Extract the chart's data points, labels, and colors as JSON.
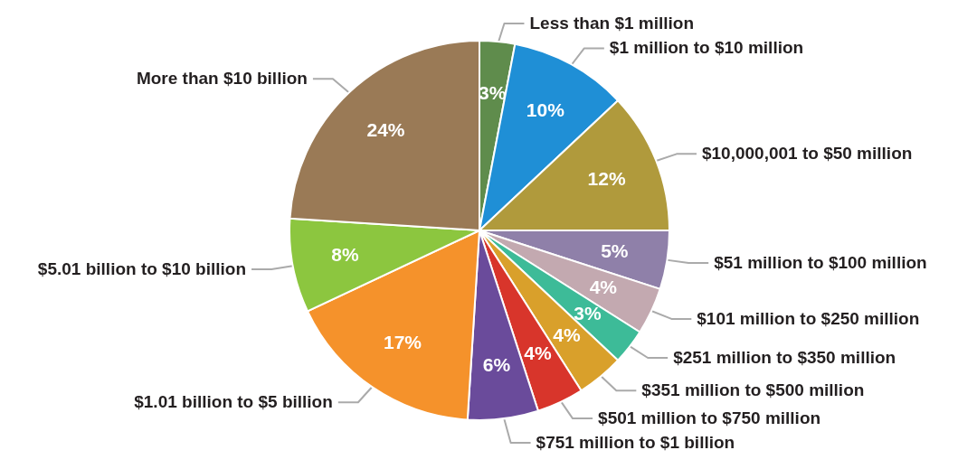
{
  "chart_data": {
    "type": "pie",
    "categories": [
      "Less than $1 million",
      "$1 million to $10 million",
      "$10,000,001 to $50 million",
      "$51 million to $100 million",
      "$101 million to $250 million",
      "$251 million to $350 million",
      "$351 million to $500 million",
      "$501 million to $750 million",
      "$751 million to $1 billion",
      "$1.01 billion to $5 billion",
      "$5.01 billion to $10 billion",
      "More than $10 billion"
    ],
    "values": [
      3,
      10,
      12,
      5,
      4,
      3,
      4,
      4,
      6,
      17,
      8,
      24
    ],
    "colors": [
      "#5f8c4c",
      "#1f8fd6",
      "#b09a3c",
      "#8f80a9",
      "#c3a9b0",
      "#3dbb98",
      "#d9a02b",
      "#d8352b",
      "#6a4b9b",
      "#f5922b",
      "#8cc63f",
      "#9a7a56"
    ],
    "value_labels": [
      "3%",
      "10%",
      "12%",
      "5%",
      "4%",
      "3%",
      "4%",
      "4%",
      "6%",
      "17%",
      "8%",
      "24%"
    ]
  }
}
